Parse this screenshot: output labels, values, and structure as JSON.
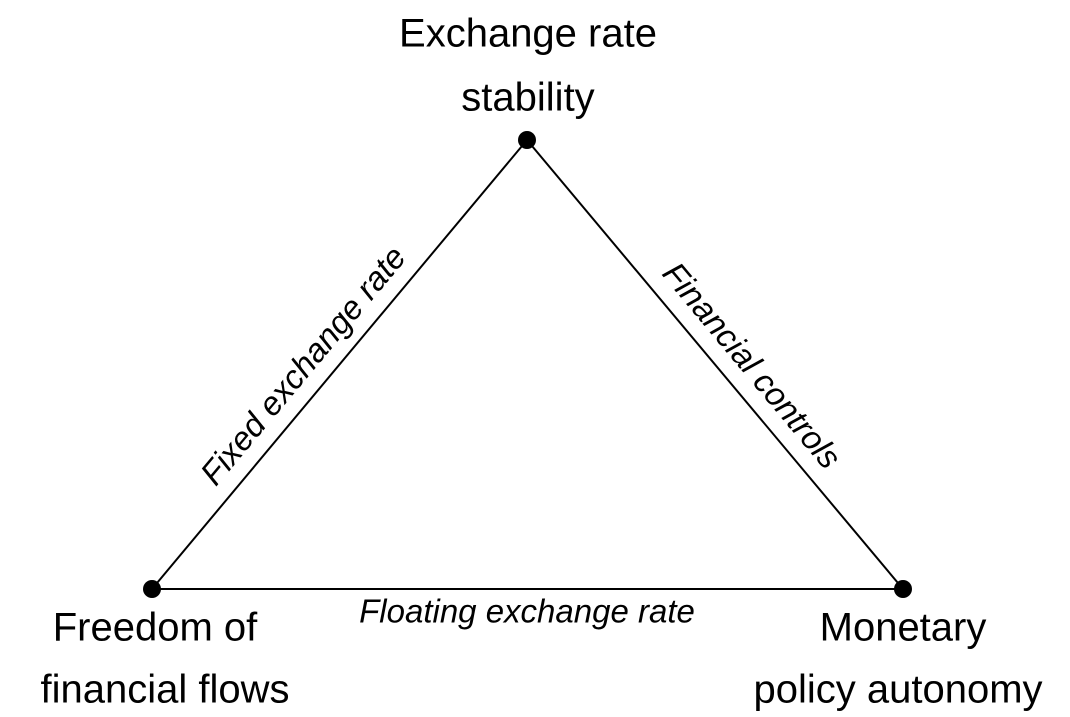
{
  "nodes": [
    {
      "label": [
        "Exchange rate",
        "stability"
      ]
    },
    {
      "label": [
        "Freedom of",
        "financial flows"
      ]
    },
    {
      "label": [
        "Monetary",
        "policy autonomy"
      ]
    }
  ],
  "edges": [
    {
      "label": "Fixed exchange rate"
    },
    {
      "label": "Financial controls"
    },
    {
      "label": "Floating exchange rate"
    }
  ]
}
